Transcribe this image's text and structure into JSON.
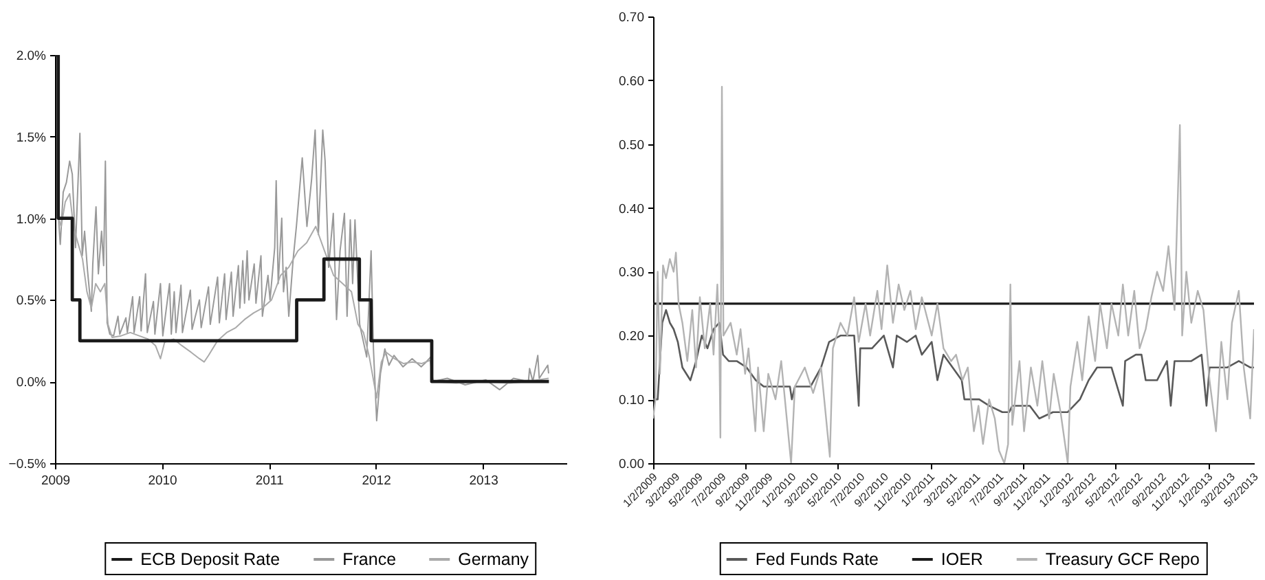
{
  "chart_data": [
    {
      "type": "line",
      "xlim": [
        "2009-01-01",
        "2013-10-13"
      ],
      "xticks": [
        "2009",
        "2010",
        "2011",
        "2012",
        "2013"
      ],
      "ylim": [
        -0.5,
        2.0
      ],
      "yticks": [
        {
          "value": -0.5,
          "label": "−0.5%"
        },
        {
          "value": 0,
          "label": "0.0%"
        },
        {
          "value": 0.5,
          "label": "0.5%"
        },
        {
          "value": 1.0,
          "label": "1.0%"
        },
        {
          "value": 1.5,
          "label": "1.5%"
        },
        {
          "value": 2.0,
          "label": "2.0%"
        }
      ],
      "legend": "bottom",
      "series": [
        {
          "name": "ECB Deposit Rate",
          "type": "step",
          "color": "#1a1a1a",
          "x": [
            "2009-01-01",
            "2009-01-12",
            "2009-03-01",
            "2009-03-27",
            "2011-04-06",
            "2011-07-08",
            "2011-11-06",
            "2011-12-16",
            "2012-07-10",
            "2013-08-14"
          ],
          "values": [
            2.0,
            1.0,
            0.5,
            0.25,
            0.5,
            0.75,
            0.5,
            0.25,
            0,
            0
          ]
        },
        {
          "name": "France",
          "color": "#999999",
          "x": [
            "2009-01-13",
            "2009-01-19",
            "2009-01-29",
            "2009-02-09",
            "2009-02-20",
            "2009-03-01",
            "2009-03-12",
            "2009-03-27",
            "2009-04-04",
            "2009-04-12",
            "2009-04-22",
            "2009-05-05",
            "2009-05-10",
            "2009-05-21",
            "2009-05-29",
            "2009-06-09",
            "2009-06-16",
            "2009-06-22",
            "2009-06-28",
            "2009-07-07",
            "2009-07-20",
            "2009-08-04",
            "2009-08-10",
            "2009-08-31",
            "2009-09-05",
            "2009-09-23",
            "2009-09-28",
            "2009-10-17",
            "2009-10-22",
            "2009-11-06",
            "2009-11-12",
            "2009-12-03",
            "2009-12-08",
            "2009-12-27",
            "2010-01-04",
            "2010-01-27",
            "2010-02-02",
            "2010-02-12",
            "2010-02-18",
            "2010-03-07",
            "2010-03-12",
            "2010-04-08",
            "2010-04-14",
            "2010-05-09",
            "2010-05-15",
            "2010-06-09",
            "2010-06-15",
            "2010-07-10",
            "2010-07-16",
            "2010-08-03",
            "2010-08-08",
            "2010-08-26",
            "2010-09-01",
            "2010-09-19",
            "2010-09-24",
            "2010-10-04",
            "2010-10-10",
            "2010-10-19",
            "2010-10-25",
            "2010-11-12",
            "2010-11-18",
            "2010-12-05",
            "2010-12-10",
            "2010-12-29",
            "2011-01-05",
            "2011-01-21",
            "2011-01-26",
            "2011-02-02",
            "2011-02-14",
            "2011-02-20",
            "2011-03-01",
            "2011-03-10",
            "2011-03-25",
            "2011-04-05",
            "2011-04-25",
            "2011-05-11",
            "2011-05-27",
            "2011-06-08",
            "2011-06-19",
            "2011-07-04",
            "2011-07-12",
            "2011-07-24",
            "2011-08-09",
            "2011-08-20",
            "2011-09-01",
            "2011-09-16",
            "2011-09-25",
            "2011-10-06",
            "2011-10-14",
            "2011-10-22",
            "2011-11-07",
            "2011-12-01",
            "2011-12-16",
            "2011-12-24",
            "2012-01-04",
            "2012-01-17",
            "2012-02-01",
            "2012-02-15",
            "2012-03-03",
            "2012-04-03",
            "2012-05-04",
            "2012-06-04",
            "2012-06-21",
            "2012-07-06",
            "2012-07-14",
            "2012-09-01",
            "2012-11-01",
            "2013-01-11",
            "2013-02-27",
            "2013-04-15",
            "2013-06-05",
            "2013-06-09",
            "2013-06-20",
            "2013-07-07",
            "2013-07-12",
            "2013-08-10",
            "2013-08-13"
          ],
          "values": [
            1.0,
            0.84,
            1.16,
            1.22,
            1.35,
            1.27,
            0.82,
            1.52,
            0.77,
            0.92,
            0.68,
            0.43,
            0.72,
            1.07,
            0.66,
            0.92,
            0.71,
            1.35,
            0.36,
            0.29,
            0.28,
            0.4,
            0.29,
            0.39,
            0.3,
            0.52,
            0.3,
            0.52,
            0.31,
            0.66,
            0.3,
            0.49,
            0.29,
            0.6,
            0.28,
            0.6,
            0.29,
            0.55,
            0.3,
            0.59,
            0.3,
            0.56,
            0.32,
            0.5,
            0.33,
            0.58,
            0.35,
            0.64,
            0.36,
            0.66,
            0.38,
            0.67,
            0.4,
            0.71,
            0.45,
            0.74,
            0.48,
            0.8,
            0.5,
            0.72,
            0.48,
            0.77,
            0.4,
            0.65,
            0.5,
            0.82,
            1.23,
            0.6,
            1.0,
            0.55,
            0.7,
            0.4,
            0.75,
            0.95,
            1.37,
            0.95,
            1.24,
            1.54,
            0.9,
            1.54,
            1.35,
            0.7,
            1.03,
            0.38,
            0.8,
            1.03,
            0.4,
            0.99,
            0.6,
            0.99,
            0.35,
            0.15,
            0.8,
            0.2,
            -0.24,
            0.05,
            0.2,
            0.1,
            0.16,
            0.09,
            0.14,
            0.09,
            0.12,
            0.15,
            0.0,
            0.02,
            -0.02,
            0.01,
            -0.05,
            0.02,
            0.0,
            0.08,
            0.0,
            0.16,
            0.02,
            0.1,
            0.05
          ]
        },
        {
          "name": "Germany",
          "color": "#aaaaaa",
          "x": [
            "2009-01-13",
            "2009-01-22",
            "2009-02-05",
            "2009-02-20",
            "2009-03-05",
            "2009-03-20",
            "2009-04-05",
            "2009-04-20",
            "2009-05-05",
            "2009-05-20",
            "2009-06-05",
            "2009-06-20",
            "2009-07-01",
            "2009-07-15",
            "2009-08-15",
            "2009-09-15",
            "2009-10-15",
            "2009-11-15",
            "2009-12-10",
            "2009-12-27",
            "2010-01-10",
            "2010-02-10",
            "2010-03-10",
            "2010-04-10",
            "2010-05-09",
            "2010-05-25",
            "2010-06-09",
            "2010-07-10",
            "2010-08-10",
            "2010-09-10",
            "2010-10-10",
            "2010-11-10",
            "2010-12-10",
            "2011-01-10",
            "2011-02-10",
            "2011-03-10",
            "2011-04-10",
            "2011-05-10",
            "2011-06-10",
            "2011-07-10",
            "2011-08-10",
            "2011-09-10",
            "2011-10-10",
            "2011-11-01",
            "2011-11-20",
            "2011-12-10",
            "2012-01-04",
            "2012-01-20",
            "2012-02-05",
            "2012-03-05",
            "2012-04-05",
            "2012-05-05",
            "2012-06-05",
            "2012-07-05",
            "2012-07-14",
            "2012-10-01",
            "2013-01-01",
            "2013-04-01",
            "2013-06-01",
            "2013-08-13"
          ],
          "values": [
            1.0,
            0.95,
            1.1,
            1.15,
            0.95,
            0.85,
            0.75,
            0.55,
            0.45,
            0.6,
            0.55,
            0.6,
            0.35,
            0.27,
            0.28,
            0.3,
            0.28,
            0.26,
            0.22,
            0.14,
            0.24,
            0.26,
            0.22,
            0.18,
            0.14,
            0.12,
            0.16,
            0.25,
            0.3,
            0.33,
            0.38,
            0.42,
            0.45,
            0.5,
            0.65,
            0.7,
            0.8,
            0.85,
            0.95,
            0.8,
            0.65,
            0.6,
            0.55,
            0.35,
            0.3,
            0.15,
            -0.1,
            0.12,
            0.18,
            0.14,
            0.11,
            0.12,
            0.11,
            0.13,
            0.0,
            -0.01,
            0.0,
            -0.01,
            0.0,
            0.02
          ]
        }
      ]
    },
    {
      "type": "line",
      "xlim": [
        "2009-01-02",
        "2013-05-02"
      ],
      "xticks": [
        {
          "value": "2009-01-02",
          "label": "1/2/2009"
        },
        {
          "value": "2009-03-02",
          "label": "3/2/2009"
        },
        {
          "value": "2009-05-02",
          "label": "5/2/2009"
        },
        {
          "value": "2009-07-02",
          "label": "7/2/2009"
        },
        {
          "value": "2009-09-02",
          "label": "9/2/2009"
        },
        {
          "value": "2009-11-02",
          "label": "11/2/2009"
        },
        {
          "value": "2010-01-02",
          "label": "1/2/2010"
        },
        {
          "value": "2010-03-02",
          "label": "3/2/2010"
        },
        {
          "value": "2010-05-02",
          "label": "5/2/2010"
        },
        {
          "value": "2010-07-02",
          "label": "7/2/2010"
        },
        {
          "value": "2010-09-02",
          "label": "9/2/2010"
        },
        {
          "value": "2010-11-02",
          "label": "11/2/2010"
        },
        {
          "value": "2011-01-02",
          "label": "1/2/2011"
        },
        {
          "value": "2011-03-02",
          "label": "3/2/2011"
        },
        {
          "value": "2011-05-02",
          "label": "5/2/2011"
        },
        {
          "value": "2011-07-02",
          "label": "7/2/2011"
        },
        {
          "value": "2011-09-02",
          "label": "9/2/2011"
        },
        {
          "value": "2011-11-02",
          "label": "11/2/2011"
        },
        {
          "value": "2012-01-02",
          "label": "1/2/2012"
        },
        {
          "value": "2012-03-02",
          "label": "3/2/2012"
        },
        {
          "value": "2012-05-02",
          "label": "5/2/2012"
        },
        {
          "value": "2012-07-02",
          "label": "7/2/2012"
        },
        {
          "value": "2012-09-02",
          "label": "9/2/2012"
        },
        {
          "value": "2012-11-02",
          "label": "11/2/2012"
        },
        {
          "value": "2013-01-02",
          "label": "1/2/2013"
        },
        {
          "value": "2013-03-02",
          "label": "3/2/2013"
        },
        {
          "value": "2013-05-02",
          "label": "5/2/2013"
        }
      ],
      "ylim": [
        0,
        0.7
      ],
      "yticks": [
        {
          "value": 0,
          "label": "0.00"
        },
        {
          "value": 0.1,
          "label": "0.10"
        },
        {
          "value": 0.2,
          "label": "0.20"
        },
        {
          "value": 0.3,
          "label": "0.30"
        },
        {
          "value": 0.4,
          "label": "0.40"
        },
        {
          "value": 0.5,
          "label": "0.50"
        },
        {
          "value": 0.6,
          "label": "0.60"
        },
        {
          "value": 0.7,
          "label": "0.70"
        }
      ],
      "legend": "bottom",
      "series": [
        {
          "name": "Fed Funds Rate",
          "color": "#595959",
          "x": [
            "2009-01-02",
            "2009-01-14",
            "2009-01-26",
            "2009-02-05",
            "2009-02-15",
            "2009-02-25",
            "2009-03-08",
            "2009-03-20",
            "2009-04-10",
            "2009-04-25",
            "2009-05-10",
            "2009-05-25",
            "2009-06-10",
            "2009-06-25",
            "2009-07-05",
            "2009-07-20",
            "2009-08-10",
            "2009-09-05",
            "2009-09-29",
            "2009-10-20",
            "2009-11-20",
            "2009-12-28",
            "2010-01-02",
            "2010-01-10",
            "2010-02-20",
            "2010-03-20",
            "2010-04-10",
            "2010-05-10",
            "2010-06-15",
            "2010-06-27",
            "2010-07-01",
            "2010-08-01",
            "2010-09-01",
            "2010-09-25",
            "2010-10-05",
            "2010-11-01",
            "2010-11-24",
            "2010-12-10",
            "2011-01-05",
            "2011-01-20",
            "2011-02-05",
            "2011-03-01",
            "2011-03-25",
            "2011-04-01",
            "2011-05-10",
            "2011-06-05",
            "2011-07-10",
            "2011-07-28",
            "2011-08-05",
            "2011-09-20",
            "2011-10-15",
            "2011-11-20",
            "2011-12-29",
            "2012-01-30",
            "2012-02-22",
            "2012-03-15",
            "2012-04-22",
            "2012-05-22",
            "2012-05-28",
            "2012-06-25",
            "2012-07-10",
            "2012-07-21",
            "2012-08-20",
            "2012-09-15",
            "2012-09-25",
            "2012-10-05",
            "2012-11-18",
            "2012-12-15",
            "2012-12-28",
            "2013-01-05",
            "2013-02-21",
            "2013-03-23",
            "2013-04-22",
            "2013-05-02"
          ],
          "values": [
            0.1,
            0.1,
            0.22,
            0.24,
            0.22,
            0.21,
            0.19,
            0.15,
            0.13,
            0.16,
            0.2,
            0.18,
            0.21,
            0.22,
            0.17,
            0.16,
            0.16,
            0.15,
            0.13,
            0.12,
            0.12,
            0.12,
            0.1,
            0.12,
            0.12,
            0.15,
            0.19,
            0.2,
            0.2,
            0.09,
            0.18,
            0.18,
            0.2,
            0.15,
            0.2,
            0.19,
            0.2,
            0.17,
            0.19,
            0.13,
            0.17,
            0.15,
            0.13,
            0.1,
            0.1,
            0.09,
            0.08,
            0.08,
            0.09,
            0.09,
            0.07,
            0.08,
            0.08,
            0.1,
            0.13,
            0.15,
            0.15,
            0.09,
            0.16,
            0.17,
            0.17,
            0.13,
            0.13,
            0.16,
            0.09,
            0.16,
            0.16,
            0.17,
            0.09,
            0.15,
            0.15,
            0.16,
            0.15,
            0.15
          ]
        },
        {
          "name": "IOER",
          "color": "#1a1a1a",
          "x": [
            "2009-01-02",
            "2013-05-02"
          ],
          "values": [
            0.25,
            0.25
          ]
        },
        {
          "name": "Treasury GCF Repo",
          "color": "#b3b3b3",
          "x": [
            "2009-01-02",
            "2009-01-08",
            "2009-01-14",
            "2009-01-20",
            "2009-01-28",
            "2009-02-05",
            "2009-02-15",
            "2009-02-25",
            "2009-03-03",
            "2009-03-10",
            "2009-03-20",
            "2009-04-02",
            "2009-04-15",
            "2009-04-25",
            "2009-05-05",
            "2009-05-18",
            "2009-06-01",
            "2009-06-10",
            "2009-06-20",
            "2009-06-25",
            "2009-06-28",
            "2009-07-02",
            "2009-07-06",
            "2009-07-25",
            "2009-08-10",
            "2009-08-20",
            "2009-09-01",
            "2009-09-10",
            "2009-09-28",
            "2009-10-05",
            "2009-10-20",
            "2009-11-01",
            "2009-11-20",
            "2009-12-05",
            "2009-12-31",
            "2010-01-10",
            "2010-02-05",
            "2010-02-27",
            "2010-03-20",
            "2010-04-12",
            "2010-04-20",
            "2010-05-10",
            "2010-05-28",
            "2010-06-15",
            "2010-06-27",
            "2010-07-15",
            "2010-07-27",
            "2010-08-15",
            "2010-08-26",
            "2010-09-10",
            "2010-09-25",
            "2010-10-10",
            "2010-10-25",
            "2010-11-10",
            "2010-11-24",
            "2010-12-10",
            "2011-01-05",
            "2011-01-20",
            "2011-02-05",
            "2011-02-25",
            "2011-03-10",
            "2011-03-27",
            "2011-04-10",
            "2011-04-26",
            "2011-05-08",
            "2011-05-20",
            "2011-06-05",
            "2011-06-20",
            "2011-07-01",
            "2011-07-15",
            "2011-07-25",
            "2011-07-31",
            "2011-08-05",
            "2011-08-24",
            "2011-09-05",
            "2011-09-23",
            "2011-10-10",
            "2011-10-23",
            "2011-11-10",
            "2011-11-22",
            "2011-12-10",
            "2011-12-29",
            "2012-01-05",
            "2012-01-23",
            "2012-02-05",
            "2012-02-22",
            "2012-03-10",
            "2012-03-23",
            "2012-04-10",
            "2012-04-22",
            "2012-05-10",
            "2012-05-22",
            "2012-06-05",
            "2012-06-21",
            "2012-07-05",
            "2012-07-21",
            "2012-08-05",
            "2012-08-20",
            "2012-09-05",
            "2012-09-19",
            "2012-10-05",
            "2012-10-19",
            "2012-10-25",
            "2012-11-05",
            "2012-11-18",
            "2012-12-05",
            "2012-12-20",
            "2013-01-05",
            "2013-01-22",
            "2013-02-05",
            "2013-02-21",
            "2013-03-05",
            "2013-03-23",
            "2013-04-05",
            "2013-04-22",
            "2013-05-02"
          ],
          "values": [
            0.07,
            0.1,
            0.3,
            0.14,
            0.31,
            0.29,
            0.32,
            0.3,
            0.33,
            0.25,
            0.22,
            0.16,
            0.24,
            0.15,
            0.26,
            0.18,
            0.25,
            0.17,
            0.28,
            0.2,
            0.04,
            0.59,
            0.2,
            0.22,
            0.17,
            0.21,
            0.14,
            0.18,
            0.05,
            0.15,
            0.05,
            0.14,
            0.1,
            0.16,
            0.0,
            0.12,
            0.15,
            0.11,
            0.15,
            0.01,
            0.18,
            0.22,
            0.2,
            0.26,
            0.19,
            0.25,
            0.2,
            0.27,
            0.21,
            0.31,
            0.22,
            0.28,
            0.24,
            0.27,
            0.21,
            0.26,
            0.2,
            0.25,
            0.18,
            0.16,
            0.17,
            0.13,
            0.15,
            0.05,
            0.09,
            0.03,
            0.1,
            0.07,
            0.02,
            0.0,
            0.03,
            0.28,
            0.06,
            0.16,
            0.05,
            0.15,
            0.09,
            0.16,
            0.07,
            0.14,
            0.08,
            0.0,
            0.12,
            0.19,
            0.13,
            0.23,
            0.16,
            0.25,
            0.18,
            0.25,
            0.2,
            0.28,
            0.2,
            0.27,
            0.18,
            0.21,
            0.26,
            0.3,
            0.27,
            0.34,
            0.24,
            0.53,
            0.2,
            0.3,
            0.22,
            0.27,
            0.24,
            0.13,
            0.05,
            0.19,
            0.1,
            0.22,
            0.27,
            0.15,
            0.07,
            0.21
          ]
        }
      ]
    }
  ]
}
